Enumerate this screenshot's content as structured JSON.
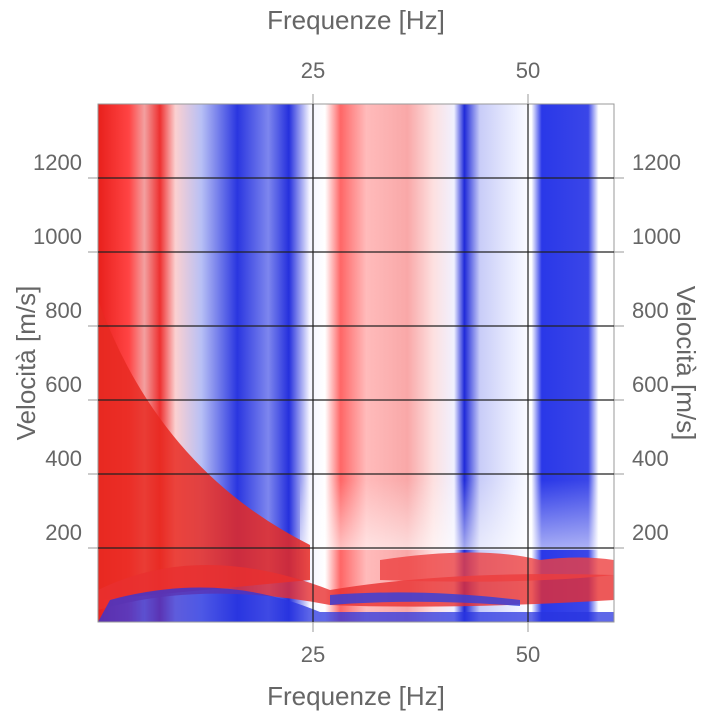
{
  "chart_data": {
    "type": "heatmap",
    "x_label_top": "Frequenze [Hz]",
    "x_label_bottom": "Frequenze [Hz]",
    "y_label_left": "Velocità [m/s]",
    "y_label_right": "Velocità [m/s]",
    "xlim": [
      0,
      60
    ],
    "xticks": [
      25,
      50
    ],
    "ylim": [
      0,
      1400
    ],
    "yticks": [
      200,
      400,
      600,
      800,
      1000,
      1200
    ],
    "grid": true
  }
}
